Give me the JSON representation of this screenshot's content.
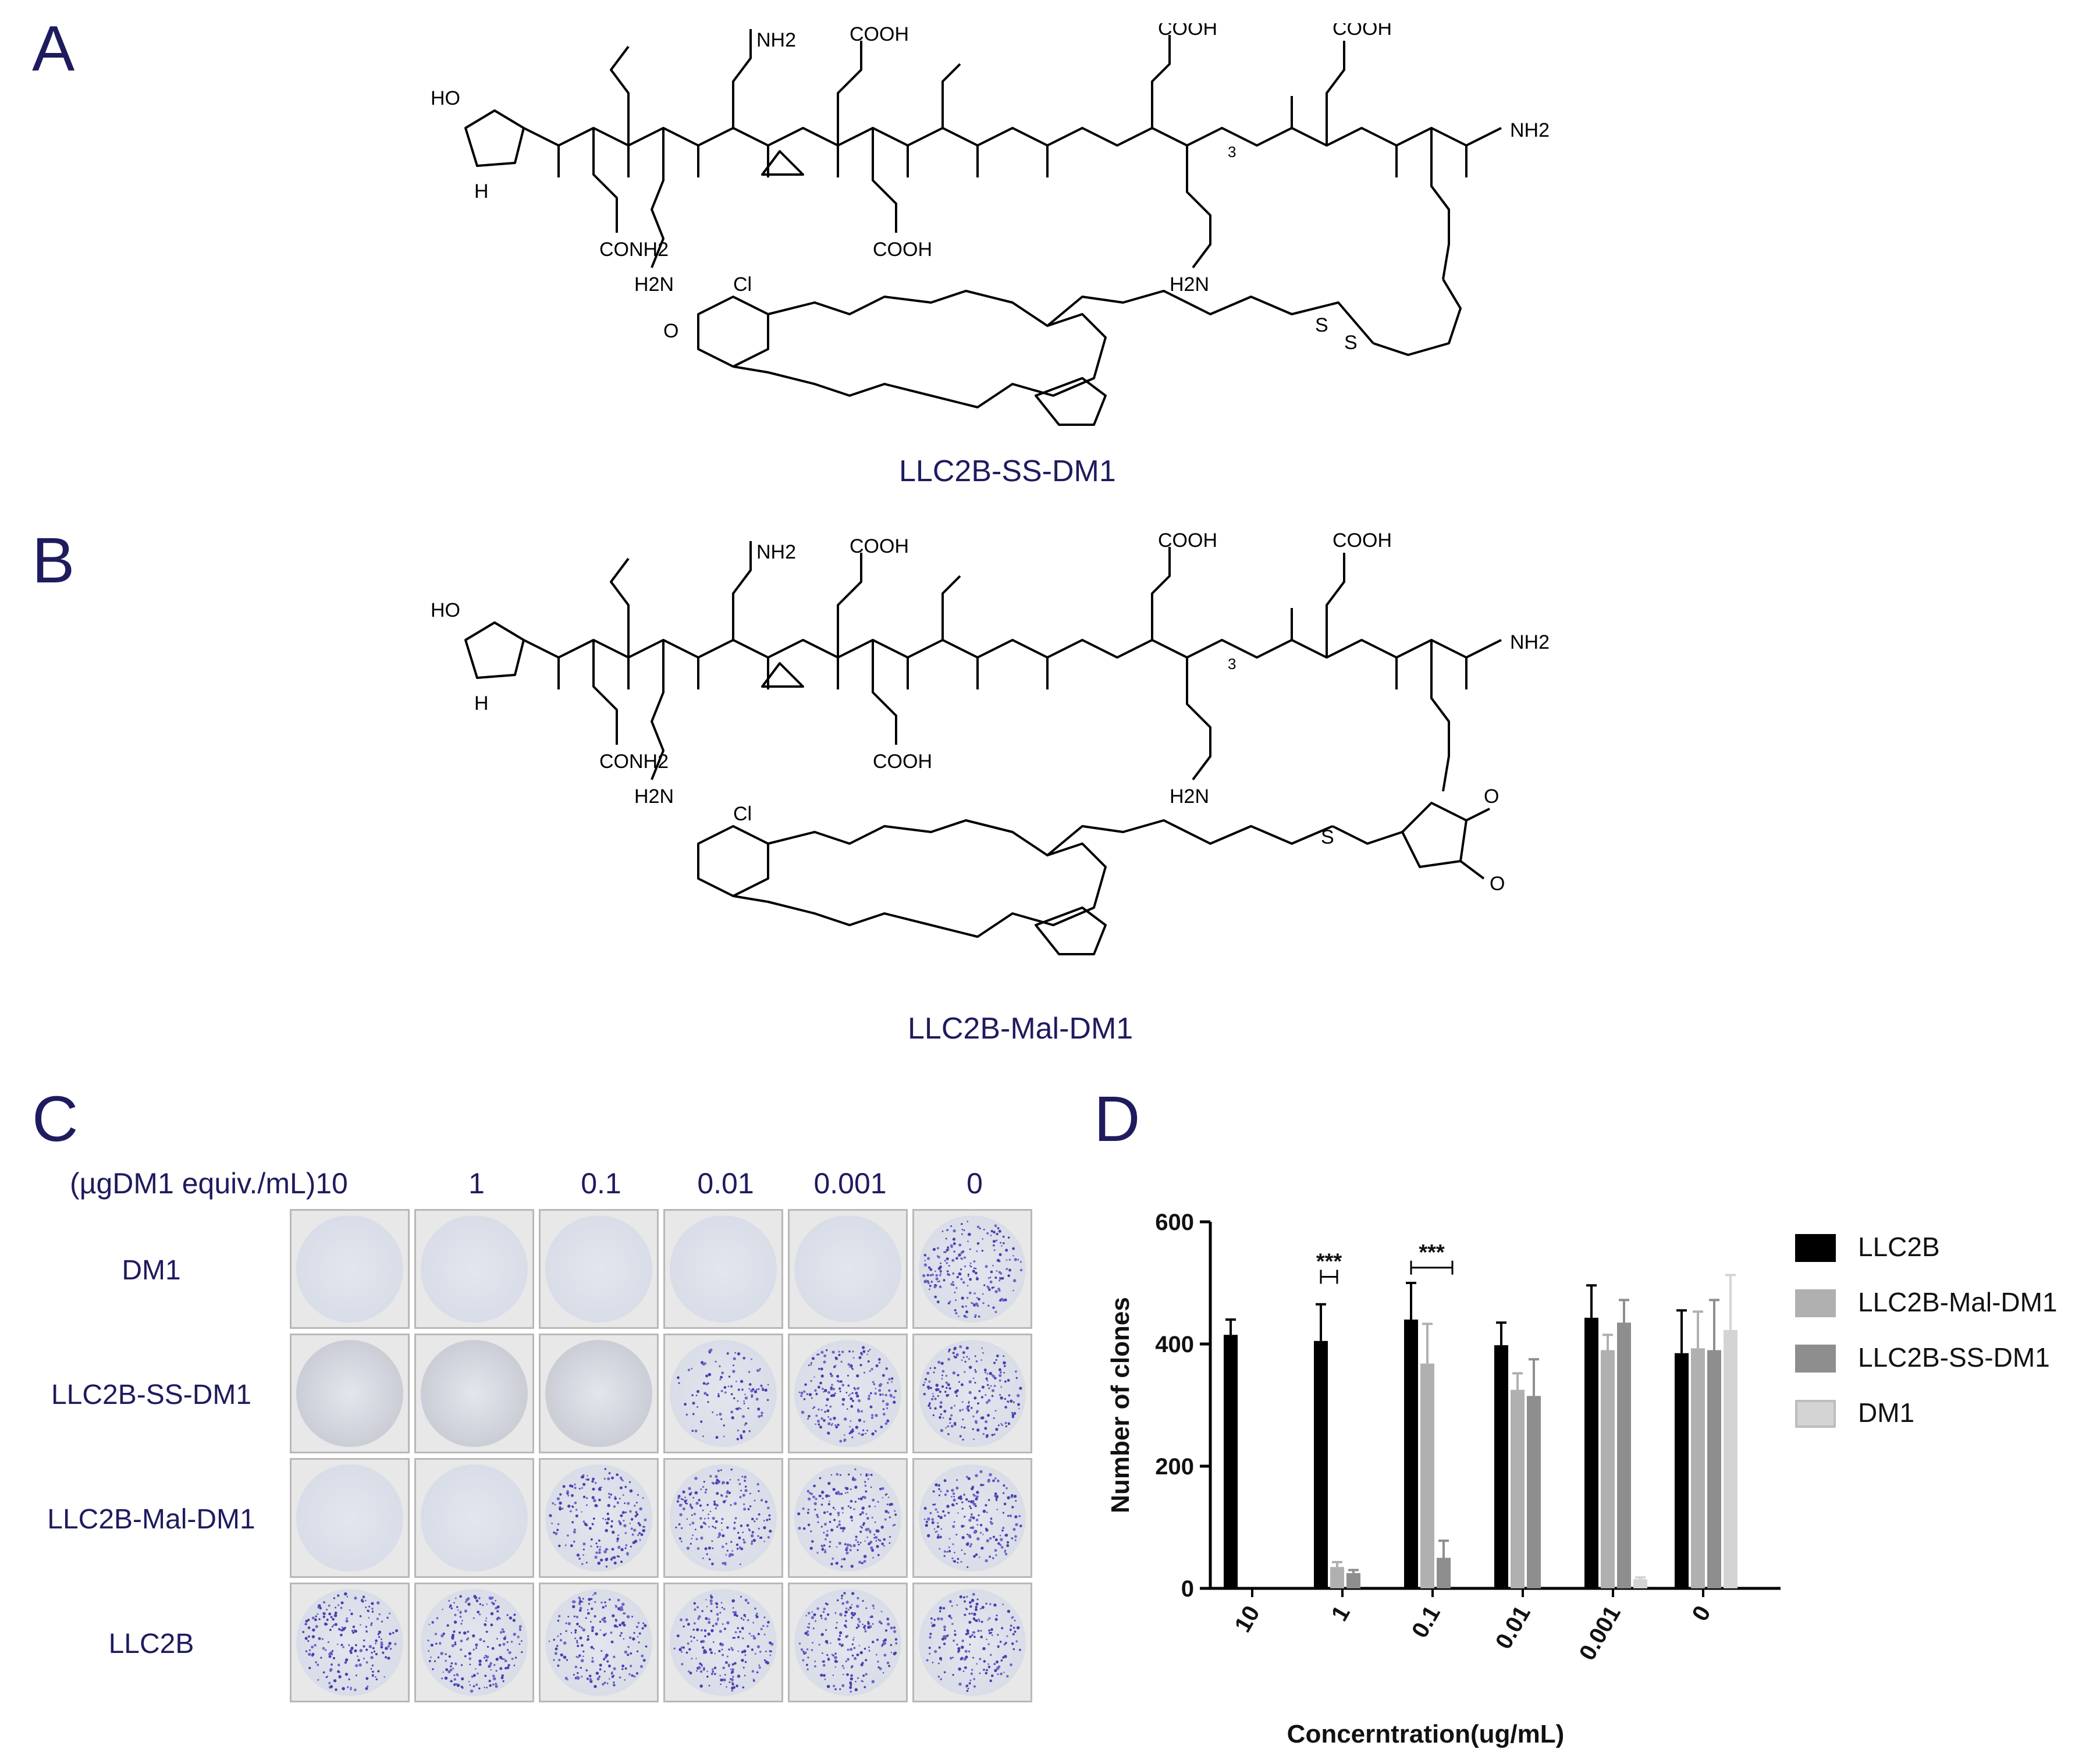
{
  "panels": {
    "a": {
      "letter": "A",
      "compound": "LLC2B-SS-DM1"
    },
    "b": {
      "letter": "B",
      "compound": "LLC2B-Mal-DM1"
    },
    "c": {
      "letter": "C"
    },
    "d": {
      "letter": "D"
    }
  },
  "structure_labels": {
    "ho": "HO",
    "nh": "H",
    "n": "N",
    "nh2": "NH2",
    "conh2": "CONH2",
    "cooh": "COOH",
    "h2n": "H2N",
    "o": "O",
    "s": "S",
    "cl": "Cl",
    "three": "3"
  },
  "well_plate": {
    "unit_label": "(µgDM1 equiv./mL)",
    "concentrations": [
      "10",
      "1",
      "0.1",
      "0.01",
      "0.001",
      "0"
    ],
    "rows": [
      {
        "label": "DM1",
        "colony_density": [
          0,
          0,
          0,
          0,
          0,
          0.95
        ]
      },
      {
        "label": "LLC2B-SS-DM1",
        "colony_density": [
          0,
          0,
          0,
          0.5,
          0.9,
          0.9
        ]
      },
      {
        "label": "LLC2B-Mal-DM1",
        "colony_density": [
          0,
          0,
          0.85,
          0.85,
          0.9,
          0.9
        ]
      },
      {
        "label": "LLC2B",
        "colony_density": [
          0.9,
          0.9,
          0.85,
          0.9,
          0.9,
          0.8
        ]
      }
    ]
  },
  "chart_data": {
    "type": "bar",
    "categories": [
      "10",
      "1",
      "0.1",
      "0.01",
      "0.001",
      "0"
    ],
    "xlabel": "Concerntration(ug/mL)",
    "ylabel": "Number of clones",
    "ylim": [
      0,
      600
    ],
    "yticks": [
      "0",
      "200",
      "400",
      "600"
    ],
    "grid": false,
    "legend_position": "right",
    "series": [
      {
        "name": "LLC2B",
        "color": "#000000",
        "values": [
          415,
          405,
          440,
          398,
          443,
          385
        ],
        "errors": [
          25,
          60,
          60,
          37,
          53,
          70
        ]
      },
      {
        "name": "LLC2B-Mal-DM1",
        "color": "#b0b0b0",
        "values": [
          0,
          35,
          368,
          325,
          390,
          393
        ],
        "errors": [
          0,
          8,
          65,
          27,
          25,
          60
        ]
      },
      {
        "name": "LLC2B-SS-DM1",
        "color": "#8e8e8e",
        "values": [
          0,
          25,
          50,
          315,
          435,
          390
        ],
        "errors": [
          0,
          5,
          28,
          60,
          37,
          82
        ]
      },
      {
        "name": "DM1",
        "color": "#d4d4d4",
        "values": [
          0,
          0,
          0,
          0,
          15,
          423
        ],
        "errors": [
          0,
          0,
          0,
          0,
          3,
          90
        ]
      }
    ],
    "significance": [
      {
        "category": "1",
        "label": "***"
      },
      {
        "category": "0.1",
        "label": "***"
      }
    ]
  }
}
